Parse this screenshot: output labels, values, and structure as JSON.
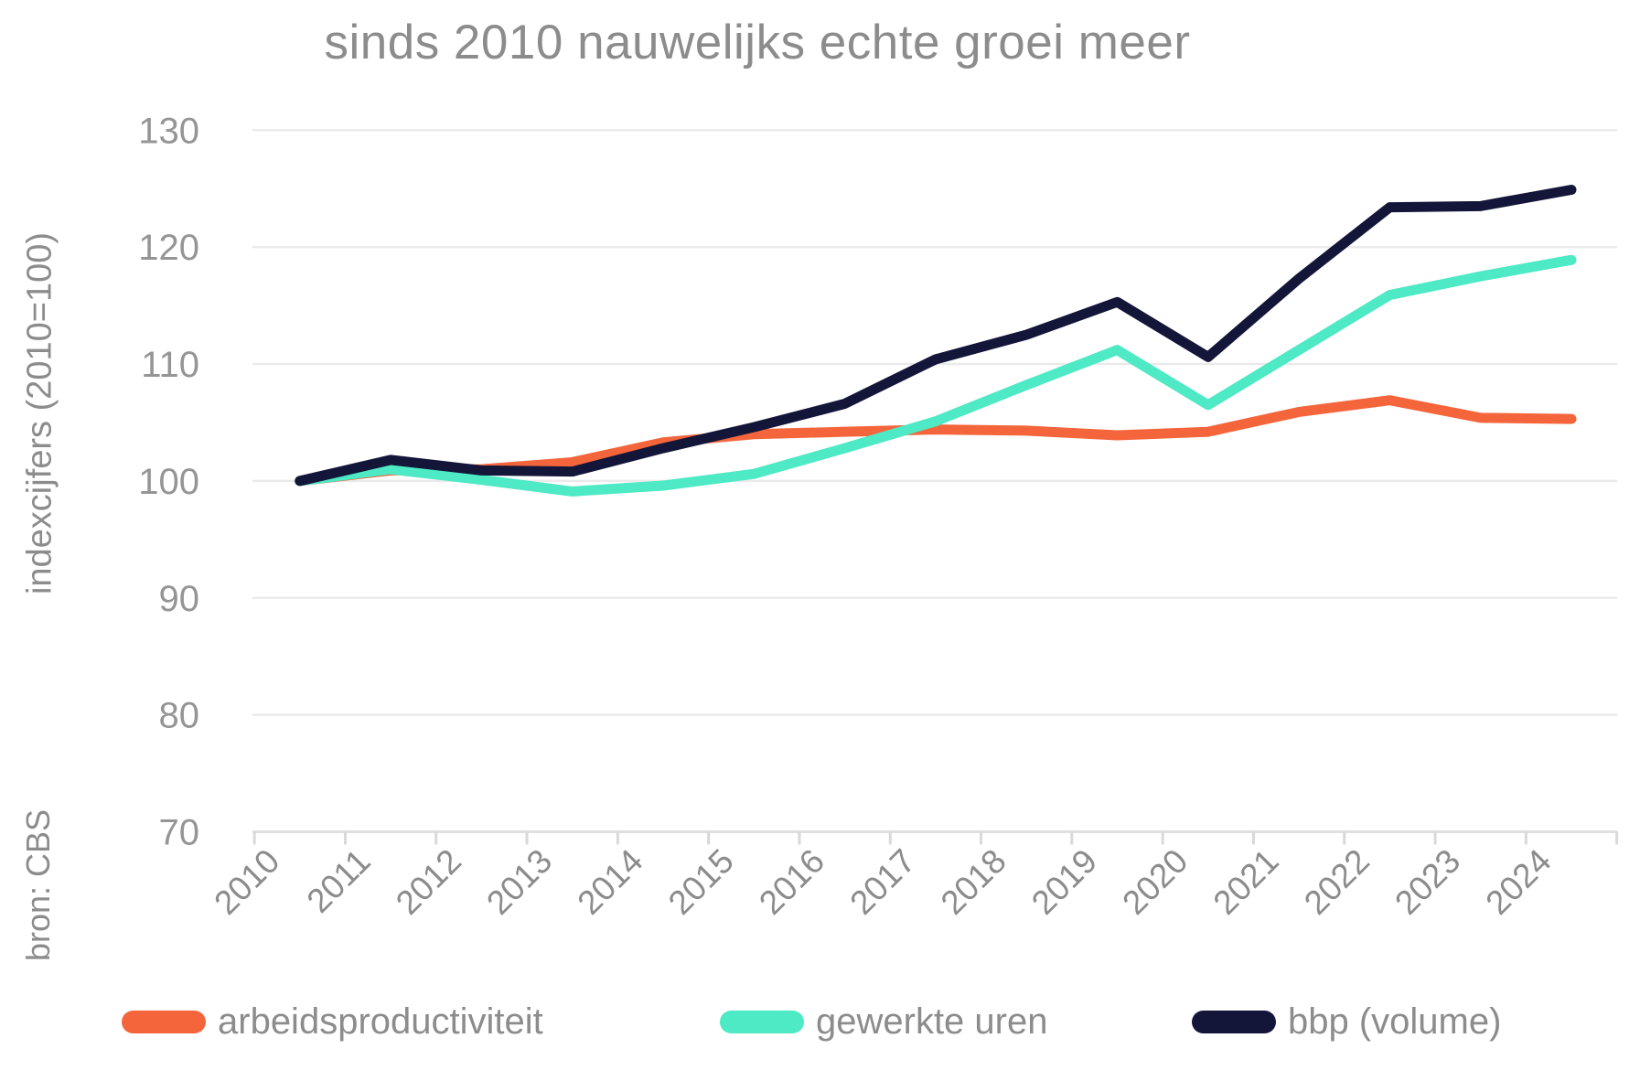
{
  "chart_data": {
    "type": "line",
    "title": "sinds 2010 nauwelijks echte groei meer",
    "ylabel": "indexcijfers (2010=100)",
    "xlabel": "",
    "source": "bron: CBS",
    "x": [
      2010,
      2011,
      2012,
      2013,
      2014,
      2015,
      2016,
      2017,
      2018,
      2019,
      2020,
      2021,
      2022,
      2023,
      2024
    ],
    "yticks": [
      70,
      80,
      90,
      100,
      110,
      120,
      130
    ],
    "ylim": [
      70,
      130
    ],
    "grid": true,
    "legend_position": "bottom",
    "series": [
      {
        "name": "arbeidsproductiviteit",
        "color": "#F4653C",
        "values": [
          100,
          100.9,
          101.0,
          101.6,
          103.3,
          104.0,
          104.2,
          104.4,
          104.3,
          103.9,
          104.2,
          105.9,
          106.9,
          105.4,
          105.3
        ]
      },
      {
        "name": "gewerkte uren",
        "color": "#4EE9C5",
        "values": [
          100,
          101.0,
          100.1,
          99.1,
          99.6,
          100.6,
          102.8,
          105.1,
          108.2,
          111.2,
          106.5,
          111.2,
          115.9,
          117.5,
          118.9
        ]
      },
      {
        "name": "bbp (volume)",
        "color": "#131539",
        "values": [
          100,
          101.8,
          100.9,
          100.8,
          102.8,
          104.6,
          106.6,
          110.4,
          112.5,
          115.3,
          110.6,
          117.3,
          123.4,
          123.5,
          124.9
        ]
      }
    ]
  },
  "style": {
    "grid_color": "#eaeaea",
    "axis_color": "#e0e0e0",
    "tick_color": "#d9d9d9",
    "tick_label_color": "#959595",
    "text_color": "#8c8c8c"
  }
}
